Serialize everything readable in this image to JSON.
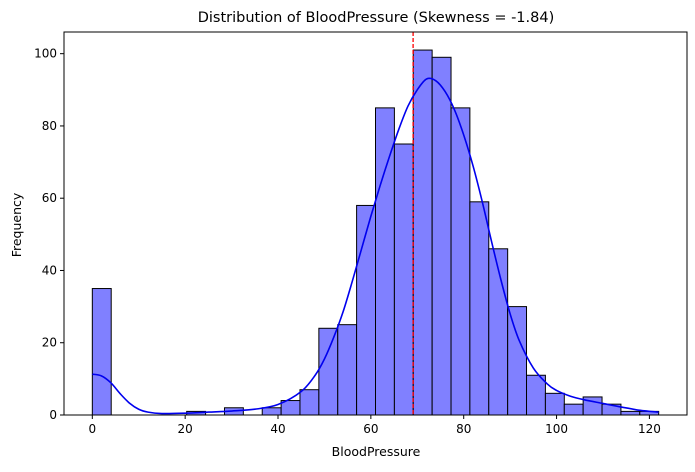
{
  "chart_data": {
    "type": "bar",
    "title": "Distribution of BloodPressure (Skewness = -1.84)",
    "xlabel": "BloodPressure",
    "ylabel": "Frequency",
    "xlim": [
      -6.1,
      128.1
    ],
    "ylim": [
      0,
      106
    ],
    "xticks": [
      0,
      20,
      40,
      60,
      80,
      100,
      120
    ],
    "yticks": [
      0,
      20,
      40,
      60,
      80,
      100
    ],
    "bin_width": 4.0667,
    "bins": [
      {
        "start": 0.0,
        "end": 4.07,
        "count": 35
      },
      {
        "start": 4.07,
        "end": 8.13,
        "count": 0
      },
      {
        "start": 8.13,
        "end": 12.2,
        "count": 0
      },
      {
        "start": 12.2,
        "end": 16.27,
        "count": 0
      },
      {
        "start": 16.27,
        "end": 20.33,
        "count": 0
      },
      {
        "start": 20.33,
        "end": 24.4,
        "count": 1
      },
      {
        "start": 24.4,
        "end": 28.47,
        "count": 0
      },
      {
        "start": 28.47,
        "end": 32.53,
        "count": 2
      },
      {
        "start": 32.53,
        "end": 36.6,
        "count": 0
      },
      {
        "start": 36.6,
        "end": 40.67,
        "count": 2
      },
      {
        "start": 40.67,
        "end": 44.73,
        "count": 4
      },
      {
        "start": 44.73,
        "end": 48.8,
        "count": 7
      },
      {
        "start": 48.8,
        "end": 52.87,
        "count": 24
      },
      {
        "start": 52.87,
        "end": 56.93,
        "count": 25
      },
      {
        "start": 56.93,
        "end": 61.0,
        "count": 58
      },
      {
        "start": 61.0,
        "end": 65.07,
        "count": 85
      },
      {
        "start": 65.07,
        "end": 69.13,
        "count": 75
      },
      {
        "start": 69.13,
        "end": 73.2,
        "count": 101
      },
      {
        "start": 73.2,
        "end": 77.27,
        "count": 99
      },
      {
        "start": 77.27,
        "end": 81.33,
        "count": 85
      },
      {
        "start": 81.33,
        "end": 85.4,
        "count": 59
      },
      {
        "start": 85.4,
        "end": 89.47,
        "count": 46
      },
      {
        "start": 89.47,
        "end": 93.53,
        "count": 30
      },
      {
        "start": 93.53,
        "end": 97.6,
        "count": 11
      },
      {
        "start": 97.6,
        "end": 101.67,
        "count": 6
      },
      {
        "start": 101.67,
        "end": 105.73,
        "count": 3
      },
      {
        "start": 105.73,
        "end": 109.8,
        "count": 5
      },
      {
        "start": 109.8,
        "end": 113.87,
        "count": 3
      },
      {
        "start": 113.87,
        "end": 117.93,
        "count": 1
      },
      {
        "start": 117.93,
        "end": 122.0,
        "count": 1
      }
    ],
    "kde": {
      "x": [
        0,
        2,
        4,
        6,
        8,
        10,
        12,
        15,
        20,
        25,
        30,
        35,
        40,
        45,
        48,
        50,
        52,
        54,
        56,
        58,
        60,
        62,
        64,
        66,
        68,
        70,
        72,
        74,
        76,
        78,
        80,
        82,
        84,
        86,
        88,
        90,
        92,
        95,
        98,
        100,
        103,
        106,
        110,
        114,
        118,
        122
      ],
      "y": [
        11.3,
        10.8,
        8.9,
        5.9,
        3.3,
        1.6,
        0.8,
        0.4,
        0.5,
        0.8,
        1.1,
        1.6,
        2.9,
        6.5,
        11,
        15.5,
        21.5,
        28.5,
        37,
        46,
        55,
        63.5,
        71.5,
        79,
        85.5,
        90,
        93,
        92.5,
        89.5,
        84.5,
        77.5,
        69,
        59,
        48,
        37.5,
        28,
        20.5,
        13,
        8.6,
        6.8,
        5.2,
        4.2,
        3.2,
        2.2,
        1.3,
        0.8
      ]
    },
    "mean_line": {
      "x": 69.1
    },
    "colors": {
      "bar_fill": "#8080ff",
      "bar_edge": "#000000",
      "kde_line": "#0000ee",
      "mean_line": "#ff0000"
    },
    "grid": false
  }
}
